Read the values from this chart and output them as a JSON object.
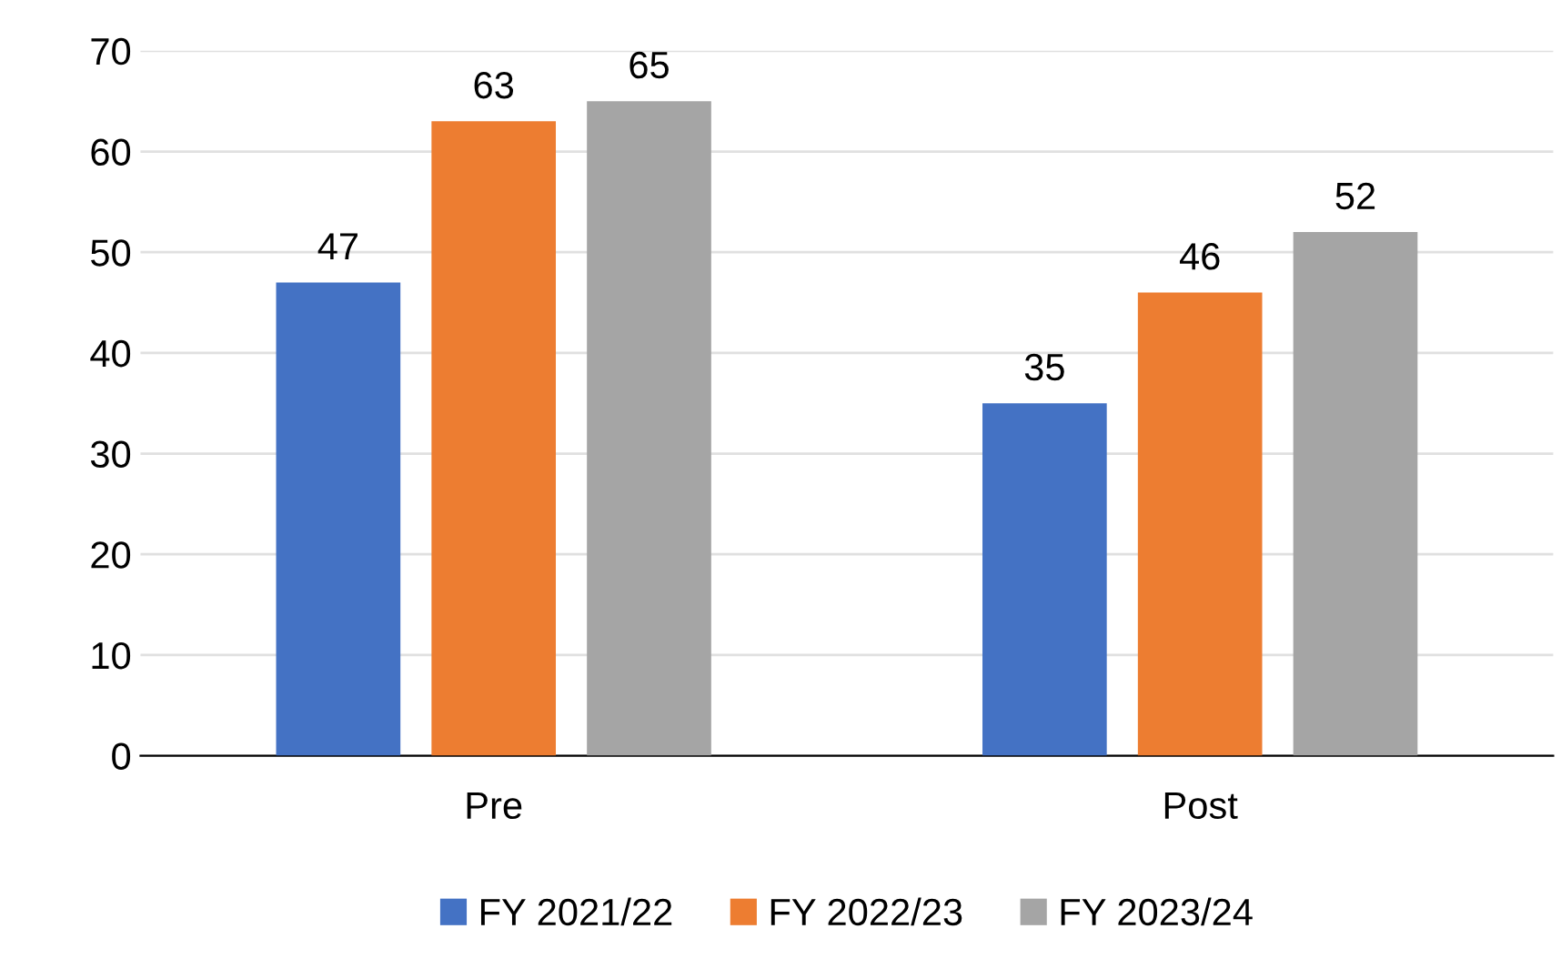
{
  "chart_data": {
    "type": "bar",
    "categories": [
      "Pre",
      "Post"
    ],
    "series": [
      {
        "name": "FY 2021/22",
        "color": "#4472c4",
        "values": [
          47,
          35
        ]
      },
      {
        "name": "FY 2022/23",
        "color": "#ed7d31",
        "values": [
          63,
          46
        ]
      },
      {
        "name": "FY 2023/24",
        "color": "#a5a5a5",
        "values": [
          65,
          52
        ]
      }
    ],
    "ylim": [
      0,
      70
    ],
    "yticks": [
      0,
      10,
      20,
      30,
      40,
      50,
      60,
      70
    ],
    "grid": "y",
    "legend": "bottom",
    "data_labels": true
  }
}
